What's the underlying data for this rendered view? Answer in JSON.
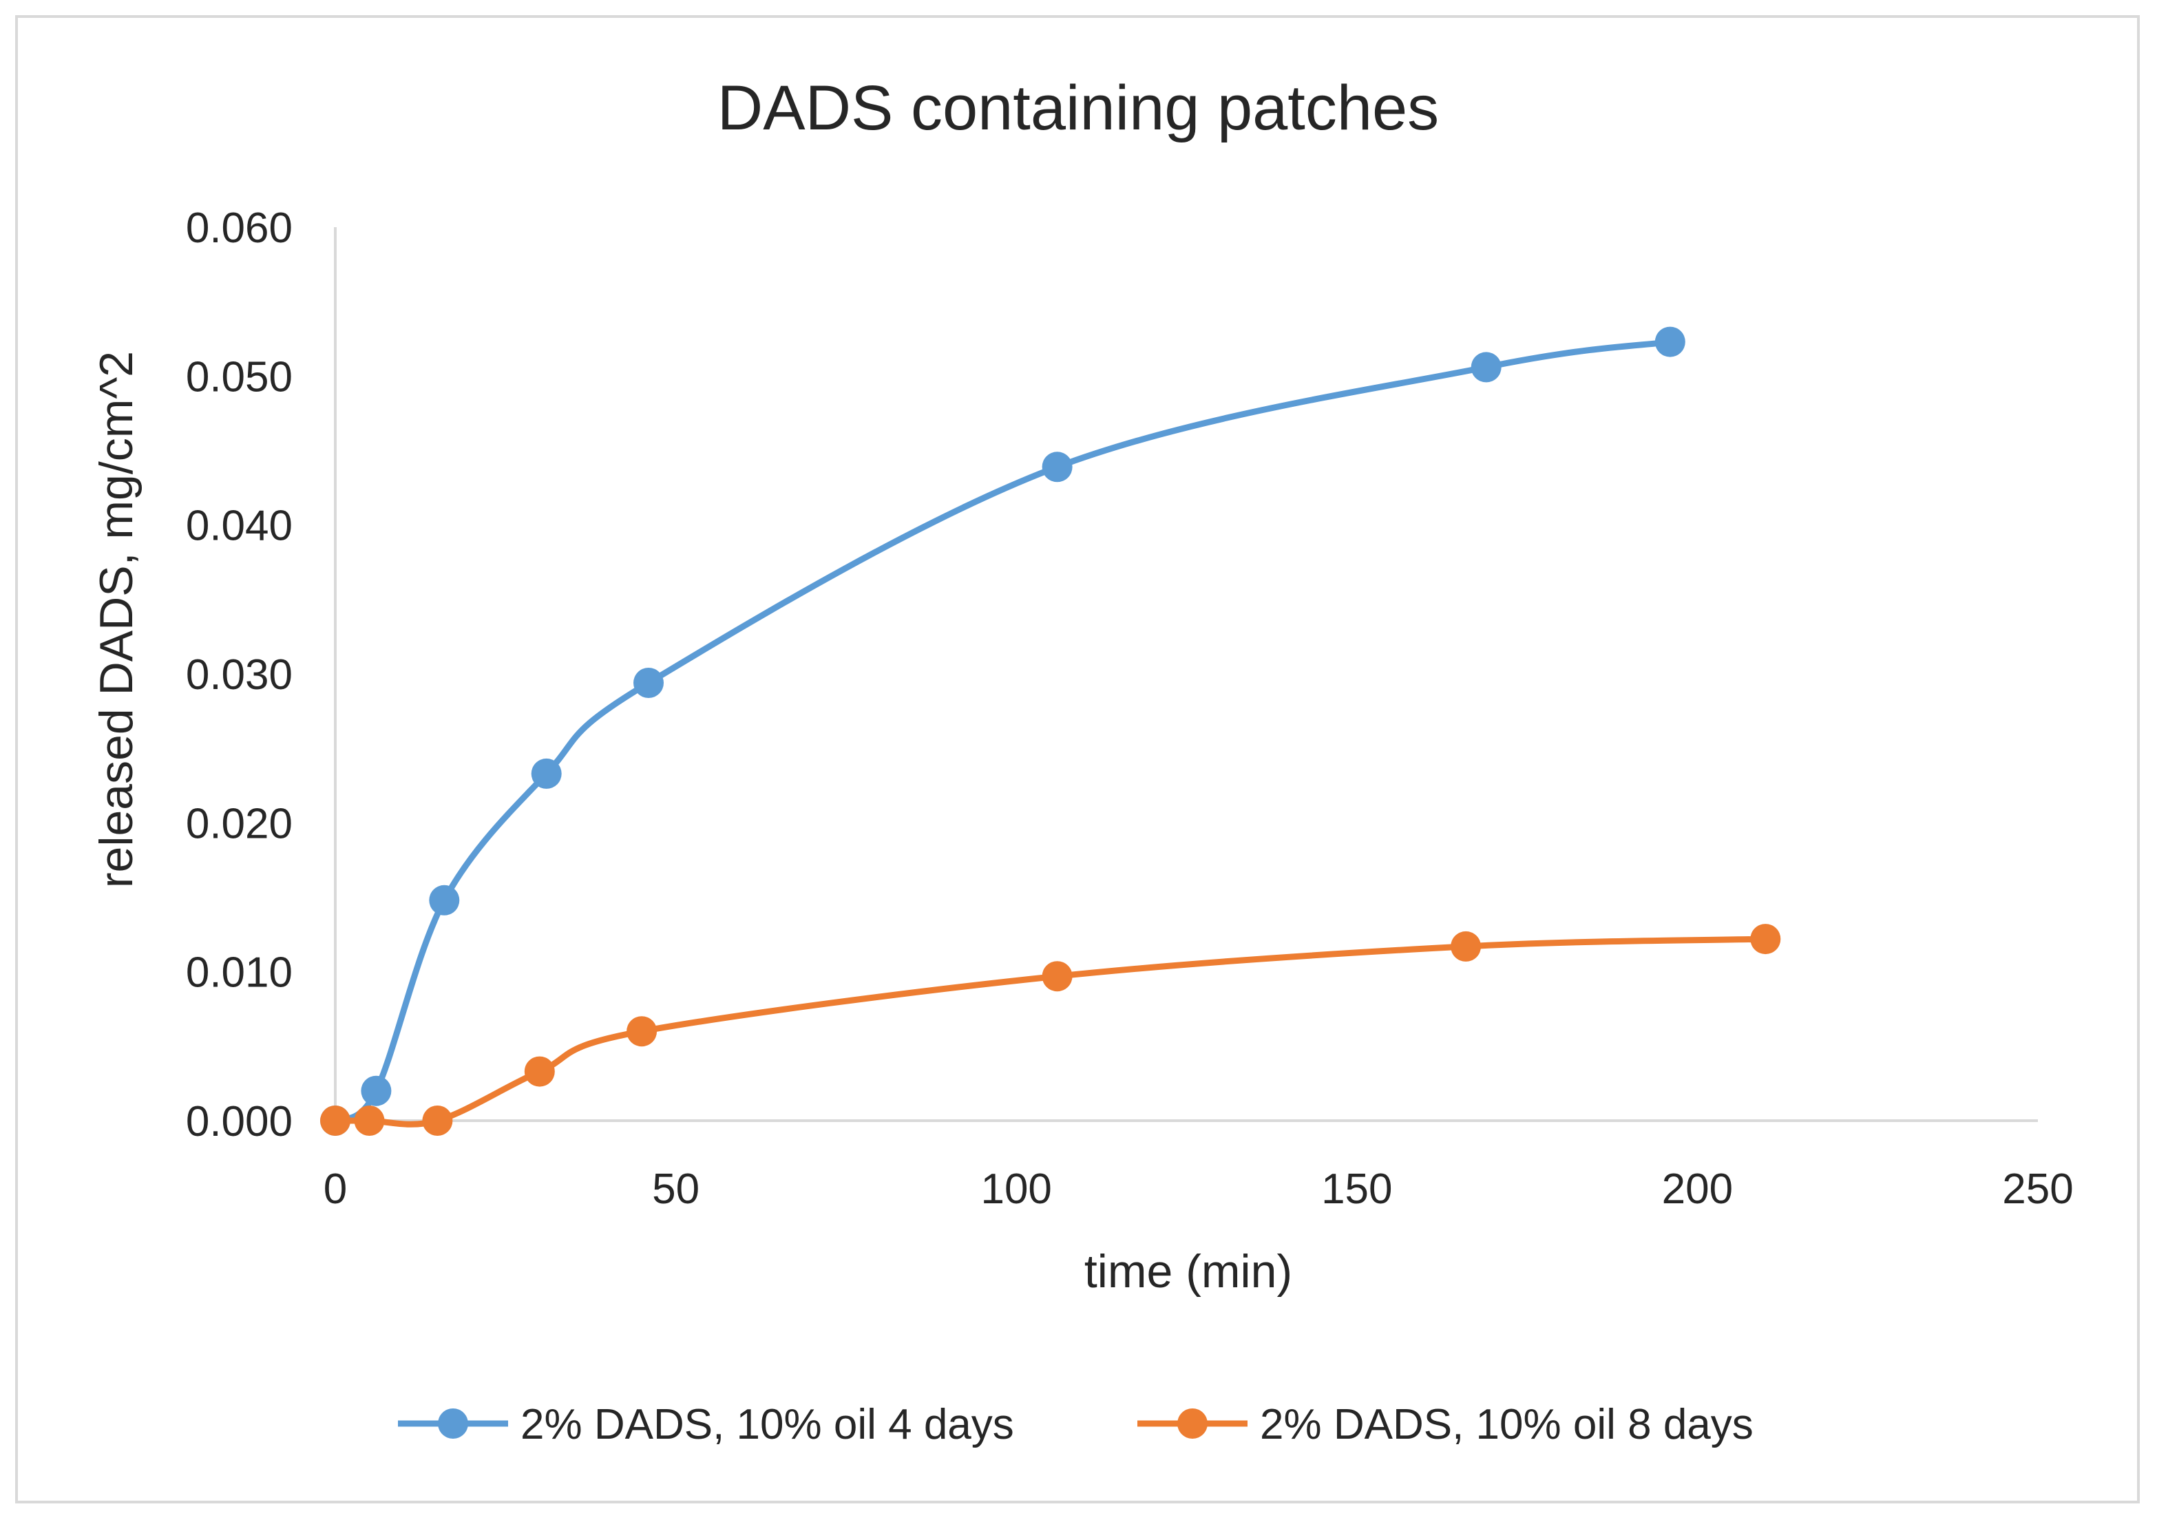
{
  "chart_data": {
    "type": "line",
    "title": "DADS containing patches",
    "xlabel": "time (min)",
    "ylabel": "released DADS, mg/cm^2",
    "xlim": [
      0,
      250
    ],
    "ylim": [
      0,
      0.06
    ],
    "x_ticks": [
      0,
      50,
      100,
      150,
      200,
      250
    ],
    "x_tick_labels": [
      "0",
      "50",
      "100",
      "150",
      "200",
      "250"
    ],
    "y_ticks": [
      0,
      0.01,
      0.02,
      0.03,
      0.04,
      0.05,
      0.06
    ],
    "y_tick_labels": [
      "0.000",
      "0.010",
      "0.020",
      "0.030",
      "0.040",
      "0.050",
      "0.060"
    ],
    "grid": false,
    "smooth": true,
    "legend_position": "bottom",
    "series": [
      {
        "name": "2% DADS, 10% oil 4 days",
        "color": "#5B9BD5",
        "x": [
          0,
          6,
          16,
          31,
          46,
          106,
          169,
          196
        ],
        "y": [
          0.0,
          0.002,
          0.0148,
          0.0233,
          0.0294,
          0.0439,
          0.0506,
          0.0523
        ]
      },
      {
        "name": "2% DADS, 10% oil 8 days",
        "color": "#ED7D31",
        "x": [
          0,
          5,
          15,
          30,
          45,
          106,
          166,
          210
        ],
        "y": [
          0.0,
          0.0,
          0.0,
          0.0033,
          0.006,
          0.0097,
          0.0117,
          0.0122
        ]
      }
    ]
  }
}
